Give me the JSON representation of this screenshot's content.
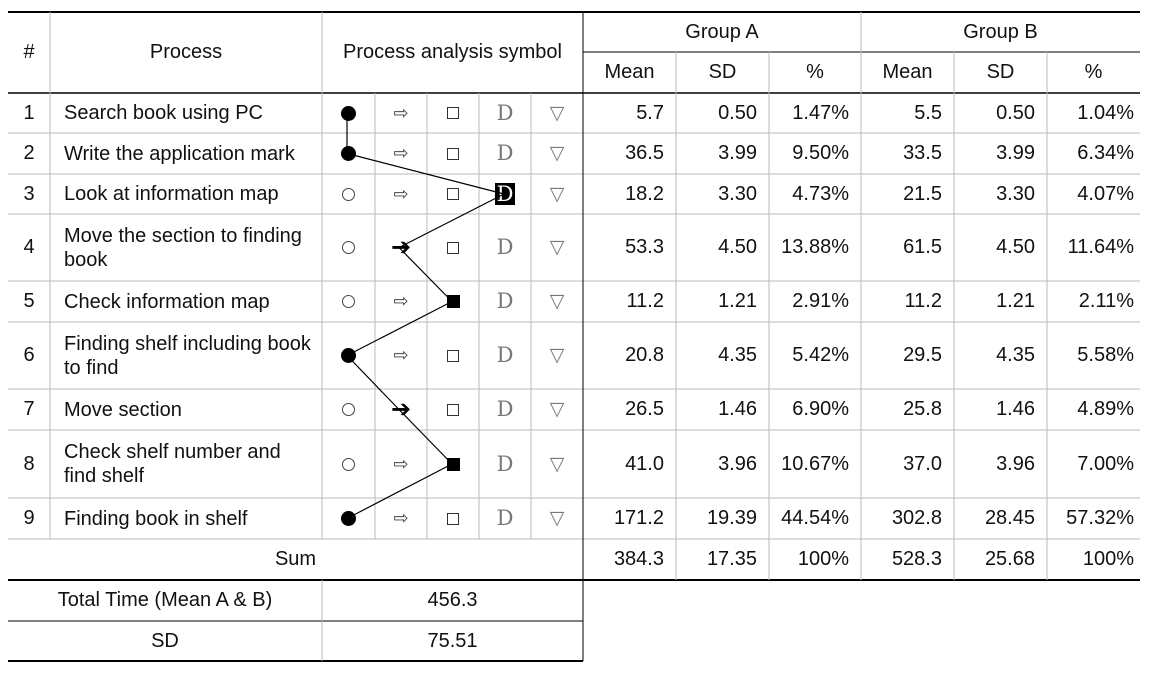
{
  "header": {
    "num": "#",
    "process": "Process",
    "symbol": "Process analysis symbol",
    "group_a": "Group A",
    "group_b": "Group B",
    "mean": "Mean",
    "sd": "SD",
    "pct": "%"
  },
  "rows": [
    {
      "num": "1",
      "process": "Search book using PC",
      "sym": "circle",
      "a_mean": "5.7",
      "a_sd": "0.50",
      "a_pct": "1.47%",
      "b_mean": "5.5",
      "b_sd": "0.50",
      "b_pct": "1.04%"
    },
    {
      "num": "2",
      "process": "Write the application mark",
      "sym": "circle",
      "a_mean": "36.5",
      "a_sd": "3.99",
      "a_pct": "9.50%",
      "b_mean": "33.5",
      "b_sd": "3.99",
      "b_pct": "6.34%"
    },
    {
      "num": "3",
      "process": "Look at information map",
      "sym": "D",
      "a_mean": "18.2",
      "a_sd": "3.30",
      "a_pct": "4.73%",
      "b_mean": "21.5",
      "b_sd": "3.30",
      "b_pct": "4.07%"
    },
    {
      "num": "4",
      "process": "Move the section to finding book",
      "sym": "arrow",
      "a_mean": "53.3",
      "a_sd": "4.50",
      "a_pct": "13.88%",
      "b_mean": "61.5",
      "b_sd": "4.50",
      "b_pct": "11.64%"
    },
    {
      "num": "5",
      "process": "Check information map",
      "sym": "box",
      "a_mean": "11.2",
      "a_sd": "1.21",
      "a_pct": "2.91%",
      "b_mean": "11.2",
      "b_sd": "1.21",
      "b_pct": "2.11%"
    },
    {
      "num": "6",
      "process": "Finding shelf including book to find",
      "sym": "circle",
      "a_mean": "20.8",
      "a_sd": "4.35",
      "a_pct": "5.42%",
      "b_mean": "29.5",
      "b_sd": "4.35",
      "b_pct": "5.58%"
    },
    {
      "num": "7",
      "process": "Move section",
      "sym": "arrow",
      "a_mean": "26.5",
      "a_sd": "1.46",
      "a_pct": "6.90%",
      "b_mean": "25.8",
      "b_sd": "1.46",
      "b_pct": "4.89%"
    },
    {
      "num": "8",
      "process": "Check shelf number and find shelf",
      "sym": "box",
      "a_mean": "41.0",
      "a_sd": "3.96",
      "a_pct": "10.67%",
      "b_mean": "37.0",
      "b_sd": "3.96",
      "b_pct": "7.00%"
    },
    {
      "num": "9",
      "process": "Finding book in shelf",
      "sym": "circle",
      "a_mean": "171.2",
      "a_sd": "19.39",
      "a_pct": "44.54%",
      "b_mean": "302.8",
      "b_sd": "28.45",
      "b_pct": "57.32%"
    }
  ],
  "sum": {
    "label": "Sum",
    "a_mean": "384.3",
    "a_sd": "17.35",
    "a_pct": "100%",
    "b_mean": "528.3",
    "b_sd": "25.68",
    "b_pct": "100%"
  },
  "totals": {
    "total_label": "Total Time (Mean A & B)",
    "total_value": "456.3",
    "sd_label": "SD",
    "sd_value": "75.51"
  },
  "symbols": {
    "circle": "circle-icon",
    "arrow": "arrow-right-icon",
    "box": "square-icon",
    "D": "D",
    "triangle": "▽"
  }
}
